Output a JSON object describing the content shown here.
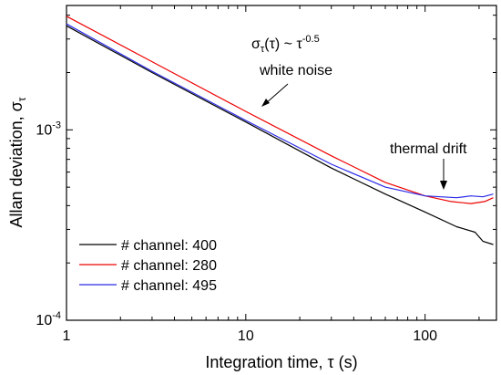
{
  "chart_data": {
    "type": "line",
    "xscale": "log",
    "yscale": "log",
    "xlim": [
      1,
      250
    ],
    "ylim": [
      0.0001,
      0.0045
    ],
    "xlabel": "Integration time, τ (s)",
    "ylabel": "Allan deviation, σ",
    "ylabel_subscript": "τ",
    "xticks": [
      {
        "value": 1,
        "label": "1"
      },
      {
        "value": 10,
        "label": "10"
      },
      {
        "value": 100,
        "label": "100"
      }
    ],
    "yticks": [
      {
        "value": 0.0001,
        "base": "10",
        "exp": "-4"
      },
      {
        "value": 0.001,
        "base": "10",
        "exp": "-3"
      }
    ],
    "legend_position": "bottom-left",
    "series": [
      {
        "name": "# channel: 400",
        "color": "#000000",
        "points": [
          [
            1,
            0.00352
          ],
          [
            3,
            0.002
          ],
          [
            10,
            0.0011
          ],
          [
            30,
            0.00063
          ],
          [
            60,
            0.00046
          ],
          [
            100,
            0.00037
          ],
          [
            150,
            0.00031
          ],
          [
            190,
            0.00029
          ],
          [
            210,
            0.00026
          ],
          [
            240,
            0.00025
          ]
        ]
      },
      {
        "name": "# channel: 280",
        "color": "#ee0000",
        "points": [
          [
            1,
            0.00395
          ],
          [
            3,
            0.00228
          ],
          [
            10,
            0.00125
          ],
          [
            30,
            0.00073
          ],
          [
            60,
            0.00053
          ],
          [
            100,
            0.00045
          ],
          [
            140,
            0.00042
          ],
          [
            180,
            0.00041
          ],
          [
            215,
            0.00042
          ],
          [
            240,
            0.00044
          ]
        ]
      },
      {
        "name": "# channel: 495",
        "color": "#2a2ae8",
        "points": [
          [
            1,
            0.0036
          ],
          [
            3,
            0.00203
          ],
          [
            10,
            0.00112
          ],
          [
            30,
            0.00066
          ],
          [
            60,
            0.0005
          ],
          [
            100,
            0.00045
          ],
          [
            150,
            0.00044
          ],
          [
            180,
            0.00045
          ],
          [
            210,
            0.000445
          ],
          [
            240,
            0.00046
          ]
        ]
      }
    ],
    "annotations": [
      {
        "id": "slope",
        "base": "σ",
        "sub": "τ",
        "mid": "(τ) ~ τ",
        "sup": "-0.5"
      },
      {
        "id": "white",
        "text": "white noise"
      },
      {
        "id": "thermal",
        "text": "thermal drift"
      }
    ]
  }
}
